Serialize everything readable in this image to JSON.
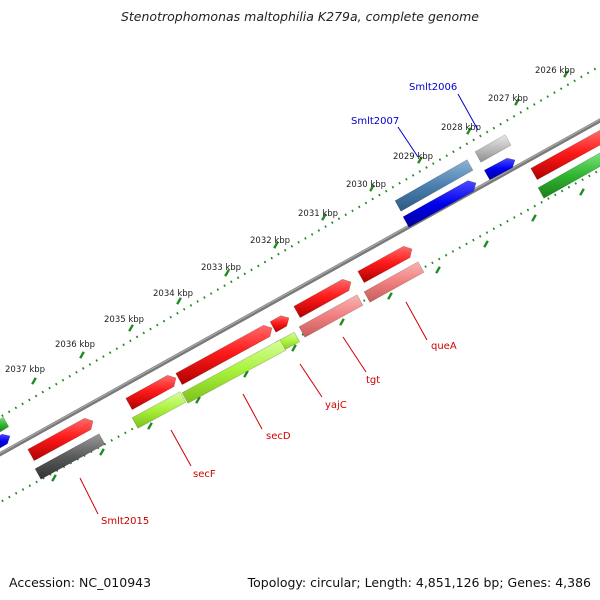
{
  "title": "Stenotrophomonas maltophilia K279a, complete genome",
  "footer": {
    "accession": "Accession: NC_010943",
    "summary": "Topology: circular; Length: 4,851,126 bp; Genes: 4,386"
  },
  "colors": {
    "backbone": "#808080",
    "ticks": "#228b22",
    "cds_forward": "#ff1a1a",
    "cds_reverse": "#ffffff",
    "gene_blue": "#0000ee",
    "label_gene": "#cc0000",
    "label_blue": "#0000cc"
  },
  "ticks": [
    {
      "kbp": 2026,
      "label": "2026 kbp"
    },
    {
      "kbp": 2027,
      "label": "2027 kbp"
    },
    {
      "kbp": 2028,
      "label": "2028 kbp"
    },
    {
      "kbp": 2029,
      "label": "2029 kbp"
    },
    {
      "kbp": 2030,
      "label": "2030 kbp"
    },
    {
      "kbp": 2031,
      "label": "2031 kbp"
    },
    {
      "kbp": 2032,
      "label": "2032 kbp"
    },
    {
      "kbp": 2033,
      "label": "2033 kbp"
    },
    {
      "kbp": 2034,
      "label": "2034 kbp"
    },
    {
      "kbp": 2035,
      "label": "2035 kbp"
    },
    {
      "kbp": 2036,
      "label": "2036 kbp"
    },
    {
      "kbp": 2037,
      "label": "2037 kbp"
    }
  ],
  "gene_labels": [
    {
      "text": "Smlt2006",
      "color": "blue"
    },
    {
      "text": "Smlt2007",
      "color": "blue"
    },
    {
      "text": "queA",
      "color": "red"
    },
    {
      "text": "tgt",
      "color": "red"
    },
    {
      "text": "yajC",
      "color": "red"
    },
    {
      "text": "secD",
      "color": "red"
    },
    {
      "text": "secF",
      "color": "red"
    },
    {
      "text": "Smlt2015",
      "color": "red"
    }
  ]
}
